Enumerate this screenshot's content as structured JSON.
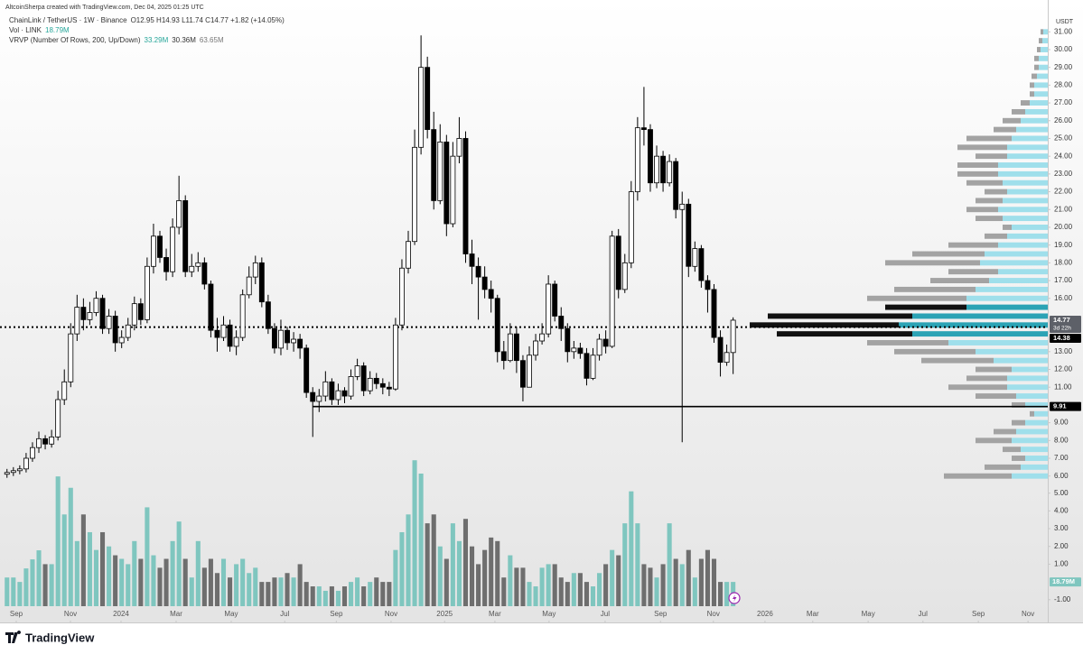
{
  "header": {
    "author_line": "AltcoinSherpa created with TradingView.com, Dec 04, 2025 01:25 UTC",
    "symbol": "ChainLink / TetherUS · 1W · Binance",
    "ohlc": "O12.95 H14.93 L11.74 C14.77 +1.82 (+14.05%)",
    "volume_indicator": "Vol · LINK",
    "volume_value": "18.79M",
    "vrvp_indicator": "VRVP (Number Of Rows, 200, Up/Down)",
    "vrvp_values": [
      "33.29M",
      "30.36M",
      "63.65M"
    ]
  },
  "chart_data": {
    "type": "candlestick",
    "currency": "USDT",
    "up_color": "#ffffff",
    "down_color": "#000000",
    "open": [
      6.1,
      6.2,
      6.3,
      6.4,
      7.0,
      7.6,
      8.1,
      7.8,
      8.2,
      10.3,
      11.3,
      14.0,
      15.5,
      14.8,
      15.2,
      16.0,
      14.3,
      15.0,
      13.5,
      13.8,
      14.5,
      15.7,
      14.8,
      17.8,
      19.5,
      18.3,
      17.5,
      20.0,
      21.5,
      17.5,
      17.8,
      18.0,
      16.8,
      14.2,
      13.8,
      14.5,
      13.3,
      13.8,
      16.2,
      17.2,
      18.0,
      15.8,
      14.3,
      13.2,
      14.2,
      13.5,
      13.7,
      13.2,
      10.7,
      10.2,
      10.5,
      11.3,
      10.3,
      10.8,
      10.5,
      11.6,
      12.2,
      10.8,
      11.5,
      11.2,
      11.0,
      10.9,
      14.5,
      17.7,
      19.2,
      24.5,
      29.0,
      25.5,
      21.5,
      24.8,
      20.2,
      24.0,
      25.0,
      18.5,
      17.8,
      17.2,
      16.5,
      16.0,
      13.0,
      12.5,
      14.0,
      12.5,
      11.0,
      12.8,
      13.6,
      14.0,
      16.8,
      15.0,
      14.3,
      13.0,
      13.2,
      12.9,
      11.5,
      12.8,
      13.7,
      13.3,
      19.5,
      16.5,
      18.0,
      22.0,
      25.6,
      25.5,
      22.5,
      24.0,
      22.5,
      23.7,
      21.0,
      21.3,
      17.8,
      18.8,
      17.0,
      16.5,
      13.8,
      12.4,
      12.95
    ],
    "high": [
      6.4,
      6.5,
      6.6,
      7.3,
      7.9,
      8.5,
      8.3,
      8.6,
      10.8,
      12.0,
      14.6,
      16.2,
      16.0,
      15.8,
      16.4,
      16.2,
      15.4,
      15.3,
      14.2,
      14.9,
      16.1,
      16.0,
      18.3,
      20.2,
      19.8,
      18.8,
      20.5,
      22.9,
      21.8,
      18.5,
      18.6,
      18.3,
      17.0,
      14.9,
      15.0,
      14.8,
      14.2,
      16.5,
      17.8,
      18.4,
      18.3,
      16.2,
      14.6,
      14.8,
      14.4,
      14.1,
      14.0,
      13.4,
      11.0,
      10.9,
      11.9,
      11.5,
      11.2,
      11.0,
      12.0,
      12.6,
      12.4,
      11.9,
      11.8,
      11.5,
      11.3,
      14.9,
      18.2,
      19.8,
      25.5,
      30.8,
      29.6,
      26.5,
      25.8,
      25.2,
      24.8,
      26.2,
      25.4,
      19.3,
      18.3,
      17.8,
      17.0,
      16.2,
      13.6,
      14.6,
      14.4,
      12.8,
      13.3,
      14.0,
      14.6,
      17.3,
      17.0,
      15.5,
      14.6,
      13.6,
      13.5,
      13.2,
      13.2,
      14.0,
      14.2,
      19.8,
      19.9,
      18.5,
      22.6,
      26.2,
      27.9,
      25.8,
      24.6,
      24.3,
      24.1,
      23.9,
      22.0,
      21.6,
      19.2,
      19.0,
      17.3,
      16.8,
      14.2,
      13.4,
      14.93
    ],
    "low": [
      5.9,
      6.0,
      6.1,
      6.2,
      6.8,
      7.3,
      7.5,
      7.6,
      8.0,
      10.0,
      11.0,
      13.6,
      14.2,
      14.5,
      15.0,
      14.0,
      14.0,
      13.0,
      13.2,
      13.6,
      14.2,
      14.5,
      14.6,
      17.4,
      18.0,
      17.0,
      17.2,
      19.6,
      17.2,
      17.2,
      17.5,
      16.5,
      13.8,
      13.0,
      13.6,
      13.0,
      12.8,
      13.6,
      16.0,
      16.8,
      15.5,
      14.0,
      12.9,
      12.8,
      13.1,
      13.0,
      12.6,
      10.4,
      8.2,
      9.6,
      10.2,
      10.0,
      10.0,
      10.1,
      10.3,
      11.4,
      10.5,
      10.6,
      10.9,
      10.6,
      10.5,
      10.8,
      14.2,
      17.4,
      19.0,
      24.1,
      25.0,
      21.0,
      21.3,
      19.5,
      20.0,
      23.6,
      18.0,
      16.8,
      14.8,
      16.0,
      15.2,
      12.4,
      12.0,
      12.4,
      11.8,
      10.2,
      11.0,
      12.5,
      13.4,
      13.8,
      14.7,
      13.6,
      12.4,
      12.6,
      12.6,
      11.1,
      11.4,
      12.5,
      12.9,
      13.2,
      16.0,
      16.3,
      17.7,
      21.5,
      24.6,
      22.0,
      22.2,
      22.0,
      22.3,
      20.5,
      7.9,
      17.2,
      17.5,
      16.6,
      15.2,
      13.5,
      11.6,
      12.2,
      11.74
    ],
    "close": [
      6.2,
      6.3,
      6.4,
      7.0,
      7.6,
      8.1,
      7.8,
      8.2,
      10.3,
      11.3,
      14.0,
      15.5,
      14.8,
      15.2,
      16.0,
      14.3,
      15.0,
      13.5,
      13.8,
      14.5,
      15.7,
      14.8,
      17.8,
      19.5,
      18.3,
      17.5,
      20.0,
      21.5,
      17.5,
      17.8,
      18.0,
      16.8,
      14.2,
      13.8,
      14.5,
      13.3,
      13.8,
      16.2,
      17.2,
      18.0,
      15.8,
      14.3,
      13.2,
      14.2,
      13.5,
      13.7,
      13.2,
      10.7,
      10.2,
      10.5,
      11.3,
      10.3,
      10.8,
      10.5,
      11.6,
      12.2,
      10.8,
      11.5,
      11.2,
      11.0,
      10.9,
      14.5,
      17.7,
      19.2,
      24.5,
      29.0,
      25.5,
      21.5,
      24.8,
      20.2,
      24.0,
      25.0,
      18.5,
      17.8,
      17.2,
      16.5,
      16.0,
      13.0,
      12.5,
      14.0,
      12.5,
      11.0,
      12.8,
      13.6,
      14.0,
      16.8,
      15.0,
      14.3,
      13.0,
      13.2,
      12.9,
      11.5,
      12.8,
      13.7,
      13.3,
      19.5,
      16.5,
      18.0,
      22.0,
      25.6,
      25.5,
      22.5,
      24.0,
      22.5,
      23.7,
      21.0,
      21.3,
      17.8,
      18.8,
      17.0,
      16.5,
      13.8,
      12.4,
      12.95,
      14.77
    ],
    "xlim": [
      -1.1,
      163.4
    ],
    "xticks": [
      {
        "value": 1.45,
        "label": "Sep"
      },
      {
        "value": 9.96,
        "label": "Nov"
      },
      {
        "value": 17.9,
        "label": "2024"
      },
      {
        "value": 26.55,
        "label": "Mar"
      },
      {
        "value": 35.2,
        "label": "May"
      },
      {
        "value": 43.6,
        "label": "Jul"
      },
      {
        "value": 51.7,
        "label": "Sep"
      },
      {
        "value": 60.3,
        "label": "Nov"
      },
      {
        "value": 68.7,
        "label": "2025"
      },
      {
        "value": 76.6,
        "label": "Mar"
      },
      {
        "value": 85.1,
        "label": "May"
      },
      {
        "value": 93.9,
        "label": "Jul"
      },
      {
        "value": 102.6,
        "label": "Sep"
      },
      {
        "value": 110.9,
        "label": "Nov"
      },
      {
        "value": 119.0,
        "label": "2026"
      },
      {
        "value": 126.5,
        "label": "Mar"
      },
      {
        "value": 135.2,
        "label": "May"
      },
      {
        "value": 143.8,
        "label": "Jul"
      },
      {
        "value": 152.5,
        "label": "Sep"
      },
      {
        "value": 160.3,
        "label": "Nov"
      }
    ],
    "ylim": [
      -2.24,
      32.03
    ],
    "yticks": [
      {
        "value": 6,
        "label": "6.00"
      },
      {
        "value": 7,
        "label": "7.00"
      },
      {
        "value": 8,
        "label": "8.00"
      },
      {
        "value": 9,
        "label": "9.00"
      },
      {
        "value": 11,
        "label": "11.00"
      },
      {
        "value": 12,
        "label": "12.00"
      },
      {
        "value": 13,
        "label": "13.00"
      },
      {
        "value": 16,
        "label": "16.00"
      },
      {
        "value": 17,
        "label": "17.00"
      },
      {
        "value": 18,
        "label": "18.00"
      },
      {
        "value": 19,
        "label": "19.00"
      },
      {
        "value": 20,
        "label": "20.00"
      },
      {
        "value": 21,
        "label": "21.00"
      },
      {
        "value": 22,
        "label": "22.00"
      },
      {
        "value": 23,
        "label": "23.00"
      },
      {
        "value": 24,
        "label": "24.00"
      },
      {
        "value": 25,
        "label": "25.00"
      },
      {
        "value": 26,
        "label": "26.00"
      },
      {
        "value": 27,
        "label": "27.00"
      },
      {
        "value": 28,
        "label": "28.00"
      },
      {
        "value": 29,
        "label": "29.00"
      },
      {
        "value": 30,
        "label": "30.00"
      },
      {
        "value": 31,
        "label": "31.00"
      }
    ],
    "volume": {
      "up_color": "#7fc6bf",
      "down_color": "#6e6e6e",
      "y2lim": [
        -2.28,
        32.0
      ],
      "y2ticks": [
        {
          "value": -1,
          "label": "-1.00"
        },
        {
          "value": 1,
          "label": "1.00"
        },
        {
          "value": 2,
          "label": "2.00"
        },
        {
          "value": 3,
          "label": "3.00"
        },
        {
          "value": 4,
          "label": "4.00"
        },
        {
          "value": 5,
          "label": "5.00"
        }
      ],
      "values": [
        0.25,
        0.25,
        0,
        0.76,
        1.27,
        1.78,
        1.0,
        1.0,
        5.94,
        3.8,
        5.3,
        2.3,
        3.8,
        2.8,
        1.8,
        2.8,
        2.0,
        1.5,
        1.3,
        1.0,
        2.3,
        1.3,
        4.2,
        1.5,
        0.8,
        1.3,
        2.3,
        3.4,
        1.3,
        0.25,
        2.3,
        0.8,
        1.3,
        0.5,
        1.3,
        0.25,
        1.0,
        1.3,
        0.5,
        0.8,
        0,
        0,
        0.25,
        0.25,
        0.5,
        0.25,
        1.0,
        0,
        -0.25,
        -0.25,
        -0.5,
        -0.25,
        -0.5,
        -0.25,
        0,
        0.25,
        -0.25,
        0,
        0.25,
        0,
        0,
        1.8,
        2.8,
        3.8,
        6.85,
        6.1,
        3.3,
        3.8,
        2.0,
        1.3,
        3.3,
        2.3,
        3.55,
        2.0,
        1.0,
        1.8,
        2.5,
        2.3,
        0.25,
        1.5,
        0.8,
        0.8,
        0,
        -0.25,
        0.8,
        1.0,
        1.0,
        0.25,
        0,
        0.5,
        0.5,
        0,
        -0.25,
        0.5,
        1.0,
        1.8,
        1.5,
        3.3,
        5.1,
        3.3,
        1.0,
        0.8,
        0.25,
        1.0,
        3.3,
        1.3,
        1.0,
        1.8,
        0.25,
        1.3,
        1.8,
        1.3,
        0,
        0,
        0
      ],
      "tag": "18.79M"
    },
    "profile": {
      "up_color": "#9fdfeb",
      "down_color": "#a3a3a3",
      "value_area_up_color": "#2ba3b5",
      "value_area_down_color": "#111111",
      "value_area": [
        14.0,
        15.5
      ],
      "xlim": [
        0,
        400
      ],
      "prices": [
        6.0,
        6.5,
        7.0,
        7.5,
        8.0,
        8.5,
        9.0,
        9.5,
        10.0,
        10.5,
        11.0,
        11.5,
        12.0,
        12.5,
        13.0,
        13.5,
        14.0,
        14.5,
        15.0,
        15.5,
        16.0,
        16.5,
        17.0,
        17.5,
        18.0,
        18.5,
        19.0,
        19.5,
        20.0,
        20.5,
        21.0,
        21.5,
        22.0,
        22.5,
        23.0,
        23.5,
        24.0,
        24.5,
        25.0,
        25.5,
        26.0,
        26.5,
        27.0,
        27.5,
        28.0,
        28.5,
        29.0,
        29.5,
        30.0,
        30.5,
        31.0
      ],
      "up": [
        40,
        30,
        25,
        30,
        40,
        35,
        25,
        15,
        25,
        35,
        45,
        45,
        40,
        60,
        80,
        110,
        150,
        165,
        150,
        90,
        90,
        80,
        65,
        55,
        75,
        70,
        55,
        45,
        40,
        50,
        55,
        50,
        45,
        50,
        55,
        55,
        45,
        45,
        40,
        35,
        30,
        25,
        20,
        15,
        15,
        12,
        10,
        10,
        8,
        6,
        5
      ],
      "down": [
        75,
        40,
        15,
        20,
        40,
        25,
        15,
        5,
        15,
        45,
        65,
        45,
        40,
        80,
        90,
        90,
        150,
        165,
        160,
        90,
        110,
        90,
        65,
        55,
        105,
        80,
        55,
        25,
        10,
        30,
        35,
        30,
        25,
        40,
        45,
        45,
        35,
        55,
        50,
        25,
        20,
        15,
        10,
        5,
        5,
        6,
        5,
        5,
        4,
        4,
        3
      ]
    },
    "lines": [
      {
        "value": 14.38,
        "style": "dotted",
        "start": -1.1
      },
      {
        "value": 9.91,
        "style": "solid",
        "start": 48
      }
    ],
    "price_tags": [
      {
        "value": 14.77,
        "color": "#5d6068",
        "countdown": "3d 22h"
      },
      {
        "value": 14.38,
        "color": "#000000"
      },
      {
        "value": 9.91,
        "color": "#000000"
      }
    ]
  },
  "footer": {
    "brand": "TradingView"
  }
}
